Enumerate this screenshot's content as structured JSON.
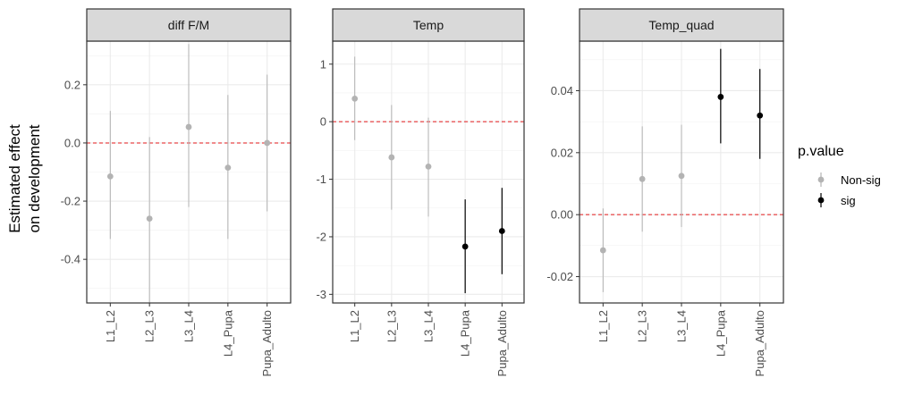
{
  "chart_data": {
    "type": "scatter",
    "subtype": "pointrange-facets",
    "ylabel_lines": [
      "Estimated effect",
      "on development"
    ],
    "categories": [
      "L1_L2",
      "L2_L3",
      "L3_L4",
      "L4_Pupa",
      "Pupa_Adulto"
    ],
    "legend": {
      "title": "p.value",
      "position": "right",
      "entries": [
        {
          "key": "nonsig",
          "label": "Non-sig",
          "color": "#b3b3b3"
        },
        {
          "key": "sig",
          "label": "sig",
          "color": "#000000"
        }
      ]
    },
    "reference_line": {
      "y": 0,
      "color": "#e41a1c",
      "style": "dashed"
    },
    "grid": true,
    "facets": [
      {
        "title": "diff F/M",
        "ylim": [
          -0.55,
          0.35
        ],
        "yticks": [
          -0.4,
          -0.2,
          0.0,
          0.2
        ],
        "yticklabels": [
          "-0.4",
          "-0.2",
          "0.0",
          "0.2"
        ],
        "points": [
          {
            "x": "L1_L2",
            "y": -0.115,
            "lo": -0.33,
            "hi": 0.11,
            "sig": false
          },
          {
            "x": "L2_L3",
            "y": -0.26,
            "lo": -0.55,
            "hi": 0.02,
            "sig": false
          },
          {
            "x": "L3_L4",
            "y": 0.055,
            "lo": -0.22,
            "hi": 0.34,
            "sig": false
          },
          {
            "x": "L4_Pupa",
            "y": -0.085,
            "lo": -0.33,
            "hi": 0.165,
            "sig": false
          },
          {
            "x": "Pupa_Adulto",
            "y": 0.0,
            "lo": -0.235,
            "hi": 0.235,
            "sig": false
          }
        ]
      },
      {
        "title": "Temp",
        "ylim": [
          -3.15,
          1.4
        ],
        "yticks": [
          -3,
          -2,
          -1,
          0,
          1
        ],
        "yticklabels": [
          "-3",
          "-2",
          "-1",
          "0",
          "1"
        ],
        "points": [
          {
            "x": "L1_L2",
            "y": 0.4,
            "lo": -0.32,
            "hi": 1.13,
            "sig": false
          },
          {
            "x": "L2_L3",
            "y": -0.62,
            "lo": -1.53,
            "hi": 0.29,
            "sig": false
          },
          {
            "x": "L3_L4",
            "y": -0.78,
            "lo": -1.65,
            "hi": 0.07,
            "sig": false
          },
          {
            "x": "L4_Pupa",
            "y": -2.17,
            "lo": -2.98,
            "hi": -1.35,
            "sig": true
          },
          {
            "x": "Pupa_Adulto",
            "y": -1.9,
            "lo": -2.65,
            "hi": -1.15,
            "sig": true
          }
        ]
      },
      {
        "title": "Temp_quad",
        "ylim": [
          -0.0285,
          0.056
        ],
        "yticks": [
          -0.02,
          0.0,
          0.02,
          0.04
        ],
        "yticklabels": [
          "-0.02",
          "0.00",
          "0.02",
          "0.04"
        ],
        "points": [
          {
            "x": "L1_L2",
            "y": -0.0115,
            "lo": -0.025,
            "hi": 0.002,
            "sig": false
          },
          {
            "x": "L2_L3",
            "y": 0.0115,
            "lo": -0.0055,
            "hi": 0.0285,
            "sig": false
          },
          {
            "x": "L3_L4",
            "y": 0.0125,
            "lo": -0.004,
            "hi": 0.029,
            "sig": false
          },
          {
            "x": "L4_Pupa",
            "y": 0.038,
            "lo": 0.023,
            "hi": 0.0535,
            "sig": true
          },
          {
            "x": "Pupa_Adulto",
            "y": 0.032,
            "lo": 0.018,
            "hi": 0.047,
            "sig": true
          }
        ]
      }
    ]
  }
}
